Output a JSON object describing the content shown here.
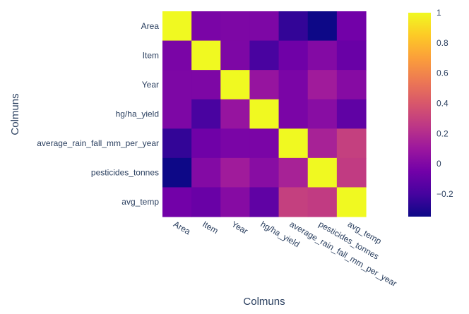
{
  "chart_data": {
    "type": "heatmap",
    "xlabel": "Colmuns",
    "ylabel": "Colmuns",
    "columns": [
      "Area",
      "Item",
      "Year",
      "hg/ha_yield",
      "average_rain_fall_mm_per_year",
      "pesticides_tonnes",
      "avg_temp"
    ],
    "rows": [
      "Area",
      "Item",
      "Year",
      "hg/ha_yield",
      "average_rain_fall_mm_per_year",
      "pesticides_tonnes",
      "avg_temp"
    ],
    "values": [
      [
        1.0,
        -0.02,
        -0.01,
        -0.01,
        -0.25,
        -0.35,
        -0.05
      ],
      [
        -0.02,
        1.0,
        -0.01,
        -0.19,
        -0.06,
        0.01,
        -0.08
      ],
      [
        -0.01,
        -0.01,
        1.0,
        0.08,
        -0.02,
        0.12,
        0.02
      ],
      [
        -0.01,
        -0.19,
        0.08,
        1.0,
        -0.02,
        0.03,
        -0.11
      ],
      [
        -0.25,
        -0.06,
        -0.02,
        -0.02,
        1.0,
        0.15,
        0.29
      ],
      [
        -0.35,
        0.01,
        0.12,
        0.03,
        0.15,
        1.0,
        0.27
      ],
      [
        -0.05,
        -0.08,
        0.02,
        -0.11,
        0.29,
        0.27,
        1.0
      ]
    ],
    "zrange": [
      -0.35,
      1.0
    ],
    "colorscale": [
      "#0d0887",
      "#46039f",
      "#7201a8",
      "#9c179e",
      "#bd3786",
      "#d8576b",
      "#ed7953",
      "#fb9f3a",
      "#fdca26",
      "#f0f921"
    ],
    "colorbar_ticks": [
      1,
      0.8,
      0.6,
      0.4,
      0.2,
      0,
      -0.2
    ],
    "colorbar_tick_labels": [
      "1",
      "0.8",
      "0.6",
      "0.4",
      "0.2",
      "0",
      "−0.2"
    ]
  }
}
